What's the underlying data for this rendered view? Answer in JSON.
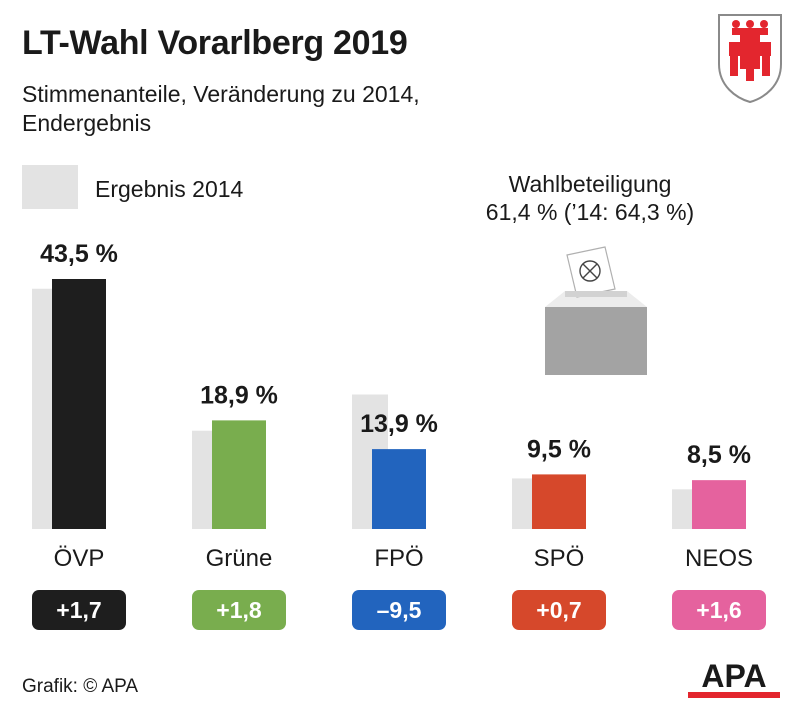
{
  "header": {
    "title": "LT-Wahl Vorarlberg 2019",
    "subtitle_line1": "Stimmenanteile, Veränderung zu 2014,",
    "subtitle_line2": "Endergebnis"
  },
  "legend": {
    "label": "Ergebnis 2014",
    "color": "#e3e3e3"
  },
  "turnout": {
    "label": "Wahlbeteiligung",
    "value": "61,4 % (’14: 64,3 %)"
  },
  "footer": {
    "credit": "Grafik: © APA",
    "logo_text": "APA"
  },
  "icons": {
    "crest": "vorarlberg-coat-of-arms-icon",
    "ballot": "ballot-box-icon"
  },
  "chart_data": {
    "type": "bar",
    "categories": [
      "ÖVP",
      "Grüne",
      "FPÖ",
      "SPÖ",
      "NEOS"
    ],
    "series": [
      {
        "name": "Ergebnis 2014",
        "values": [
          41.8,
          17.1,
          23.4,
          8.8,
          6.9
        ]
      },
      {
        "values": [
          43.5,
          18.9,
          13.9,
          9.5,
          8.5
        ]
      }
    ],
    "value_labels": [
      "43,5 %",
      "18,9 %",
      "13,9 %",
      "9,5 %",
      "8,5 %"
    ],
    "change_labels": [
      "+1,7",
      "+1,8",
      "–9,5",
      "+0,7",
      "+1,6"
    ],
    "colors": [
      "#1e1e1e",
      "#79ad4e",
      "#2264be",
      "#d6482b",
      "#e5629e"
    ],
    "old_color": "#e3e3e3",
    "ylim": [
      0,
      45
    ]
  }
}
